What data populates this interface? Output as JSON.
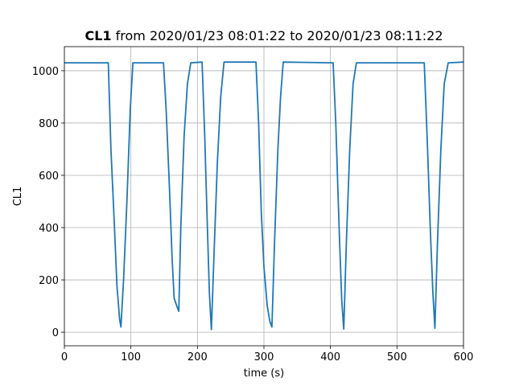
{
  "chart_data": {
    "type": "line",
    "title_parts": [
      "CL1",
      "from 2020/01/23 08:01:22 to 2020/01/23 08:11:22"
    ],
    "xlabel": "time (s)",
    "ylabel": "CL1",
    "color": "#1f77b4",
    "x": [
      0,
      66,
      70,
      75,
      79,
      83,
      85,
      89,
      94,
      99,
      103,
      149,
      153,
      158,
      162,
      165,
      169,
      172,
      175,
      180,
      185,
      190,
      207,
      211,
      215,
      218,
      221,
      225,
      230,
      235,
      240,
      288,
      292,
      296,
      300,
      305,
      309,
      312,
      316,
      321,
      325,
      329,
      404,
      408,
      413,
      417,
      420,
      424,
      429,
      434,
      439,
      541,
      546,
      550,
      554,
      557,
      561,
      566,
      571,
      577,
      600
    ],
    "values": [
      1030,
      1030,
      700,
      420,
      180,
      50,
      20,
      200,
      500,
      850,
      1030,
      1030,
      850,
      550,
      280,
      130,
      100,
      80,
      400,
      750,
      950,
      1030,
      1033,
      750,
      400,
      150,
      10,
      300,
      650,
      900,
      1033,
      1033,
      800,
      460,
      250,
      100,
      40,
      20,
      350,
      700,
      900,
      1033,
      1030,
      800,
      400,
      120,
      12,
      350,
      700,
      950,
      1030,
      1030,
      700,
      400,
      150,
      15,
      350,
      700,
      950,
      1030,
      1033
    ],
    "xlim": [
      0,
      600
    ],
    "ylim": [
      -52,
      1092
    ],
    "xticks": [
      0,
      100,
      200,
      300,
      400,
      500,
      600
    ],
    "yticks": [
      0,
      200,
      400,
      600,
      800,
      1000
    ],
    "grid": true
  }
}
